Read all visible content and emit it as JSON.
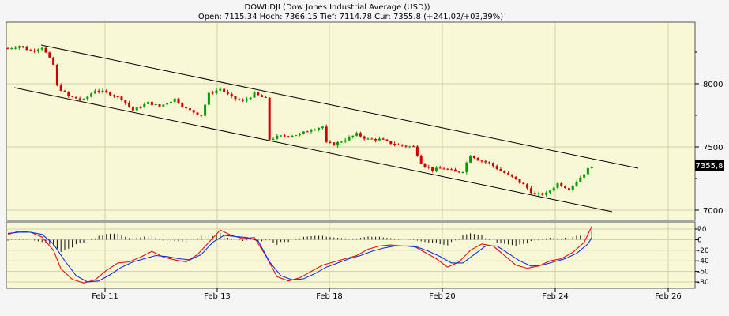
{
  "chart_data": {
    "type": "candlestick",
    "title": "DOWI:DJI (Dow Jones Industrial Average (USD))",
    "subtitle": "Open: 7115.34 Hoch: 7366.15 Tief: 7114.78 Cur: 7355.8 (+241,02/+03,39%)",
    "last_value_label": "7355,8",
    "last_value": 7355.8,
    "x_tick_labels": [
      "Feb 11",
      "Feb 13",
      "Feb 18",
      "Feb 20",
      "Feb 24",
      "Feb 26"
    ],
    "y_ticks": [
      8000,
      7500,
      7000
    ],
    "y_range": [
      6900,
      8500
    ],
    "oscillator": {
      "y_ticks": [
        20,
        0,
        -20,
        -40,
        -60,
        -80
      ],
      "y_tick_labels": [
        "20",
        "0",
        "-20",
        "-40",
        "-60",
        "-80"
      ],
      "y_range": [
        -90,
        30
      ],
      "series": [
        {
          "color": "#e01010"
        },
        {
          "color": "#1030e0"
        }
      ]
    },
    "channel_lines": [
      {
        "from": [
          "Feb 10",
          8300
        ],
        "to": [
          "Feb 25",
          7330
        ]
      },
      {
        "from": [
          "Feb 10",
          7960
        ],
        "to": [
          "Feb 25",
          6990
        ]
      }
    ],
    "price_path": [
      [
        0,
        8280
      ],
      [
        3,
        8300
      ],
      [
        6,
        8260
      ],
      [
        9,
        8290
      ],
      [
        12,
        8150
      ],
      [
        13,
        7980
      ],
      [
        16,
        7900
      ],
      [
        20,
        7870
      ],
      [
        23,
        7950
      ],
      [
        27,
        7920
      ],
      [
        30,
        7880
      ],
      [
        33,
        7790
      ],
      [
        37,
        7850
      ],
      [
        40,
        7820
      ],
      [
        44,
        7880
      ],
      [
        47,
        7800
      ],
      [
        51,
        7750
      ],
      [
        53,
        7920
      ],
      [
        56,
        7960
      ],
      [
        59,
        7890
      ],
      [
        62,
        7860
      ],
      [
        65,
        7920
      ],
      [
        68,
        7880
      ],
      [
        69,
        7560
      ],
      [
        71,
        7580
      ],
      [
        74,
        7590
      ],
      [
        77,
        7600
      ],
      [
        80,
        7640
      ],
      [
        83,
        7660
      ],
      [
        84,
        7530
      ],
      [
        86,
        7520
      ],
      [
        89,
        7560
      ],
      [
        92,
        7600
      ],
      [
        95,
        7560
      ],
      [
        98,
        7560
      ],
      [
        101,
        7530
      ],
      [
        104,
        7510
      ],
      [
        107,
        7500
      ],
      [
        109,
        7380
      ],
      [
        110,
        7350
      ],
      [
        112,
        7320
      ],
      [
        115,
        7330
      ],
      [
        118,
        7300
      ],
      [
        120,
        7310
      ],
      [
        122,
        7440
      ],
      [
        124,
        7400
      ],
      [
        127,
        7370
      ],
      [
        130,
        7310
      ],
      [
        133,
        7260
      ],
      [
        136,
        7200
      ],
      [
        139,
        7120
      ],
      [
        142,
        7130
      ],
      [
        145,
        7210
      ],
      [
        148,
        7170
      ],
      [
        151,
        7260
      ],
      [
        154,
        7355
      ]
    ],
    "osc_red": [
      [
        0,
        10
      ],
      [
        3,
        16
      ],
      [
        6,
        14
      ],
      [
        9,
        5
      ],
      [
        12,
        -20
      ],
      [
        14,
        -55
      ],
      [
        17,
        -75
      ],
      [
        20,
        -82
      ],
      [
        23,
        -76
      ],
      [
        26,
        -58
      ],
      [
        29,
        -44
      ],
      [
        32,
        -42
      ],
      [
        35,
        -33
      ],
      [
        38,
        -22
      ],
      [
        41,
        -33
      ],
      [
        44,
        -38
      ],
      [
        47,
        -42
      ],
      [
        50,
        -28
      ],
      [
        53,
        -5
      ],
      [
        56,
        18
      ],
      [
        59,
        8
      ],
      [
        62,
        2
      ],
      [
        65,
        4
      ],
      [
        68,
        -30
      ],
      [
        71,
        -70
      ],
      [
        74,
        -78
      ],
      [
        77,
        -72
      ],
      [
        80,
        -60
      ],
      [
        83,
        -48
      ],
      [
        86,
        -42
      ],
      [
        89,
        -36
      ],
      [
        92,
        -30
      ],
      [
        95,
        -18
      ],
      [
        98,
        -12
      ],
      [
        101,
        -10
      ],
      [
        104,
        -12
      ],
      [
        107,
        -12
      ],
      [
        110,
        -24
      ],
      [
        113,
        -36
      ],
      [
        116,
        -52
      ],
      [
        119,
        -42
      ],
      [
        122,
        -20
      ],
      [
        125,
        -8
      ],
      [
        128,
        -12
      ],
      [
        131,
        -30
      ],
      [
        134,
        -48
      ],
      [
        137,
        -54
      ],
      [
        140,
        -50
      ],
      [
        143,
        -40
      ],
      [
        146,
        -36
      ],
      [
        149,
        -24
      ],
      [
        152,
        -5
      ],
      [
        154,
        25
      ]
    ],
    "osc_blue": [
      [
        0,
        12
      ],
      [
        3,
        14
      ],
      [
        6,
        14
      ],
      [
        9,
        10
      ],
      [
        12,
        -8
      ],
      [
        15,
        -40
      ],
      [
        18,
        -68
      ],
      [
        21,
        -80
      ],
      [
        24,
        -78
      ],
      [
        27,
        -66
      ],
      [
        30,
        -52
      ],
      [
        33,
        -42
      ],
      [
        36,
        -36
      ],
      [
        39,
        -30
      ],
      [
        42,
        -32
      ],
      [
        45,
        -36
      ],
      [
        48,
        -38
      ],
      [
        51,
        -28
      ],
      [
        54,
        -5
      ],
      [
        57,
        8
      ],
      [
        60,
        6
      ],
      [
        63,
        4
      ],
      [
        66,
        -2
      ],
      [
        69,
        -42
      ],
      [
        72,
        -68
      ],
      [
        75,
        -76
      ],
      [
        78,
        -74
      ],
      [
        81,
        -64
      ],
      [
        84,
        -52
      ],
      [
        87,
        -44
      ],
      [
        90,
        -36
      ],
      [
        93,
        -30
      ],
      [
        96,
        -22
      ],
      [
        99,
        -16
      ],
      [
        102,
        -12
      ],
      [
        105,
        -12
      ],
      [
        108,
        -14
      ],
      [
        111,
        -22
      ],
      [
        114,
        -32
      ],
      [
        117,
        -44
      ],
      [
        120,
        -44
      ],
      [
        123,
        -28
      ],
      [
        126,
        -12
      ],
      [
        129,
        -12
      ],
      [
        132,
        -26
      ],
      [
        135,
        -40
      ],
      [
        138,
        -50
      ],
      [
        141,
        -48
      ],
      [
        144,
        -42
      ],
      [
        147,
        -36
      ],
      [
        150,
        -26
      ],
      [
        153,
        -8
      ],
      [
        154,
        4
      ]
    ]
  }
}
